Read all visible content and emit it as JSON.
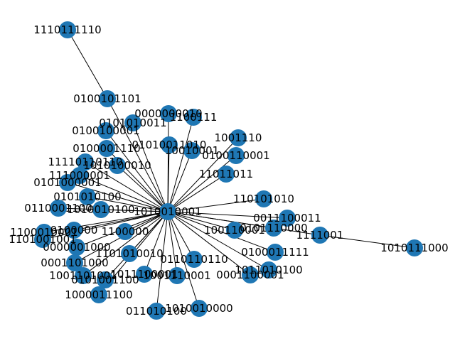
{
  "graph": {
    "hub": "1010010001",
    "colors": {
      "node": "#1f77b4",
      "edge": "#000000",
      "label": "#000000"
    },
    "outer_chain": [
      {
        "label": "0100101101",
        "edge_to": "1010010001"
      },
      {
        "label": "1110111110",
        "edge_to": "0100101101"
      },
      {
        "label": "1111001",
        "edge_to": "1010010001"
      },
      {
        "label": "1010111000",
        "edge_to": "1111001"
      }
    ],
    "cluster_labels": [
      "0000000010",
      "1100111",
      "0100100001",
      "0101010011",
      "01010011010",
      "0100001110",
      "10010001",
      "1001110",
      "11110110110",
      "0100110001",
      "111000001",
      "11011011",
      "1010100010",
      "0101000001",
      "0101010100",
      "0110001100",
      "1010010100",
      "1100010001",
      "0100000",
      "1100000",
      "1101001001",
      "0000001000",
      "1101010010",
      "1001101001",
      "0001101000",
      "0101001100",
      "1000011100",
      "011010100",
      "1011100001",
      "1001110001",
      "1010010000",
      "0110110110",
      "100110001",
      "110101010",
      "0101110000",
      "0100011111",
      "0001100001",
      "1011010100",
      "0011100011"
    ]
  }
}
